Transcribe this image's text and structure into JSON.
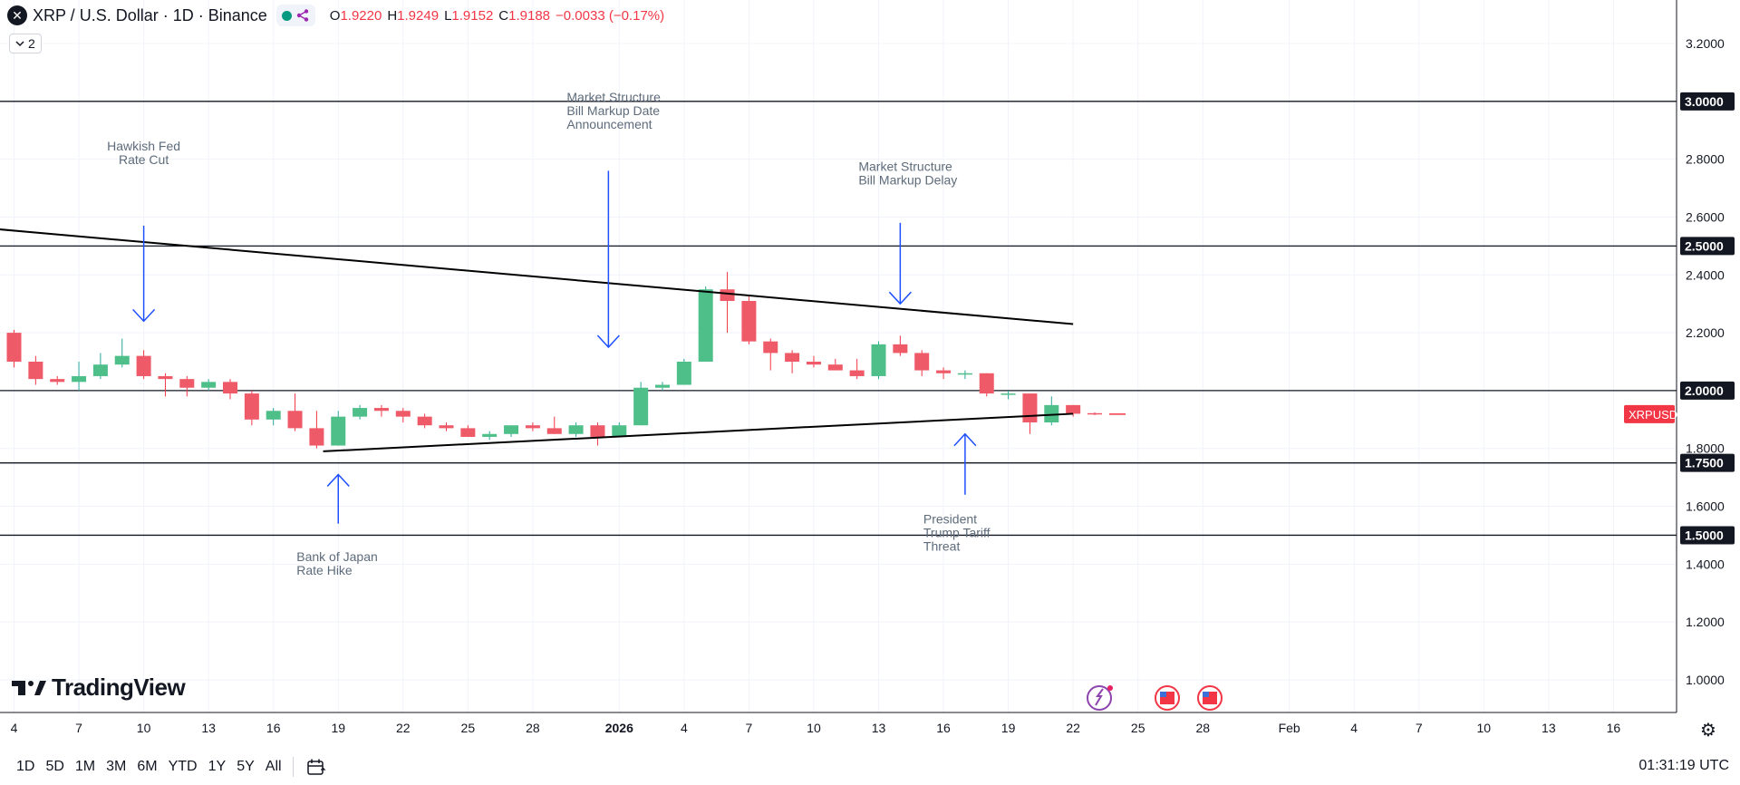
{
  "header": {
    "symbol_title": "XRP / U.S. Dollar · 1D · Binance",
    "indicator_count": "2",
    "ohlc": {
      "open_label": "O",
      "open": "1.9220",
      "high_label": "H",
      "high": "1.9249",
      "low_label": "L",
      "low": "1.9152",
      "close_label": "C",
      "close": "1.9188",
      "change": "−0.0033 (−0.17%)"
    }
  },
  "colors": {
    "up": "#26a69a",
    "up_fill": "#4fbf8a",
    "down": "#F23645",
    "down_fill": "#ef5a68",
    "trendline": "#000000",
    "annotation": "#1e50ff",
    "grid": "#f0f3fa"
  },
  "chart_data": {
    "type": "candlestick",
    "symbol": "XRPUSD",
    "interval": "1D",
    "ylim": [
      0.92,
      3.3
    ],
    "y_ticks": [
      "3.2000",
      "2.8000",
      "2.6000",
      "2.4000",
      "2.2000",
      "1.8000",
      "1.6000",
      "1.4000",
      "1.2000",
      "1.0000"
    ],
    "x_ticks": [
      {
        "i": 0,
        "label": "4"
      },
      {
        "i": 3,
        "label": "7"
      },
      {
        "i": 6,
        "label": "10"
      },
      {
        "i": 9,
        "label": "13"
      },
      {
        "i": 12,
        "label": "16"
      },
      {
        "i": 15,
        "label": "19"
      },
      {
        "i": 18,
        "label": "22"
      },
      {
        "i": 21,
        "label": "25"
      },
      {
        "i": 24,
        "label": "28"
      },
      {
        "i": 28,
        "label": "2026",
        "bold": true
      },
      {
        "i": 31,
        "label": "4"
      },
      {
        "i": 34,
        "label": "7"
      },
      {
        "i": 37,
        "label": "10"
      },
      {
        "i": 40,
        "label": "13"
      },
      {
        "i": 43,
        "label": "16"
      },
      {
        "i": 46,
        "label": "19"
      },
      {
        "i": 49,
        "label": "22"
      },
      {
        "i": 52,
        "label": "25"
      },
      {
        "i": 55,
        "label": "28"
      },
      {
        "i": 59,
        "label": "Feb"
      },
      {
        "i": 62,
        "label": "4"
      },
      {
        "i": 65,
        "label": "7"
      },
      {
        "i": 68,
        "label": "10"
      },
      {
        "i": 71,
        "label": "13"
      },
      {
        "i": 74,
        "label": "16"
      }
    ],
    "candles": [
      {
        "o": 2.2,
        "h": 2.21,
        "l": 2.08,
        "c": 2.1
      },
      {
        "o": 2.1,
        "h": 2.12,
        "l": 2.02,
        "c": 2.04
      },
      {
        "o": 2.04,
        "h": 2.05,
        "l": 2.02,
        "c": 2.03
      },
      {
        "o": 2.03,
        "h": 2.1,
        "l": 2.0,
        "c": 2.05
      },
      {
        "o": 2.05,
        "h": 2.13,
        "l": 2.04,
        "c": 2.09
      },
      {
        "o": 2.09,
        "h": 2.18,
        "l": 2.08,
        "c": 2.12
      },
      {
        "o": 2.12,
        "h": 2.14,
        "l": 2.04,
        "c": 2.05
      },
      {
        "o": 2.05,
        "h": 2.06,
        "l": 1.98,
        "c": 2.04
      },
      {
        "o": 2.04,
        "h": 2.05,
        "l": 1.98,
        "c": 2.01
      },
      {
        "o": 2.01,
        "h": 2.04,
        "l": 2.0,
        "c": 2.03
      },
      {
        "o": 2.03,
        "h": 2.04,
        "l": 1.97,
        "c": 1.99
      },
      {
        "o": 1.99,
        "h": 2.0,
        "l": 1.88,
        "c": 1.9
      },
      {
        "o": 1.9,
        "h": 1.94,
        "l": 1.88,
        "c": 1.93
      },
      {
        "o": 1.93,
        "h": 1.99,
        "l": 1.86,
        "c": 1.87
      },
      {
        "o": 1.87,
        "h": 1.93,
        "l": 1.8,
        "c": 1.81
      },
      {
        "o": 1.81,
        "h": 1.93,
        "l": 1.81,
        "c": 1.91
      },
      {
        "o": 1.91,
        "h": 1.95,
        "l": 1.9,
        "c": 1.94
      },
      {
        "o": 1.94,
        "h": 1.95,
        "l": 1.91,
        "c": 1.93
      },
      {
        "o": 1.93,
        "h": 1.94,
        "l": 1.89,
        "c": 1.91
      },
      {
        "o": 1.91,
        "h": 1.92,
        "l": 1.87,
        "c": 1.88
      },
      {
        "o": 1.88,
        "h": 1.89,
        "l": 1.86,
        "c": 1.87
      },
      {
        "o": 1.87,
        "h": 1.88,
        "l": 1.84,
        "c": 1.84
      },
      {
        "o": 1.84,
        "h": 1.86,
        "l": 1.83,
        "c": 1.85
      },
      {
        "o": 1.85,
        "h": 1.88,
        "l": 1.84,
        "c": 1.88
      },
      {
        "o": 1.88,
        "h": 1.89,
        "l": 1.86,
        "c": 1.87
      },
      {
        "o": 1.87,
        "h": 1.91,
        "l": 1.85,
        "c": 1.85
      },
      {
        "o": 1.85,
        "h": 1.89,
        "l": 1.84,
        "c": 1.88
      },
      {
        "o": 1.88,
        "h": 1.89,
        "l": 1.81,
        "c": 1.84
      },
      {
        "o": 1.84,
        "h": 1.89,
        "l": 1.84,
        "c": 1.88
      },
      {
        "o": 1.88,
        "h": 2.03,
        "l": 1.88,
        "c": 2.01
      },
      {
        "o": 2.01,
        "h": 2.03,
        "l": 2.0,
        "c": 2.02
      },
      {
        "o": 2.02,
        "h": 2.11,
        "l": 2.02,
        "c": 2.1
      },
      {
        "o": 2.1,
        "h": 2.36,
        "l": 2.1,
        "c": 2.35
      },
      {
        "o": 2.35,
        "h": 2.41,
        "l": 2.2,
        "c": 2.31
      },
      {
        "o": 2.31,
        "h": 2.33,
        "l": 2.16,
        "c": 2.17
      },
      {
        "o": 2.17,
        "h": 2.18,
        "l": 2.07,
        "c": 2.13
      },
      {
        "o": 2.13,
        "h": 2.14,
        "l": 2.06,
        "c": 2.1
      },
      {
        "o": 2.1,
        "h": 2.12,
        "l": 2.08,
        "c": 2.09
      },
      {
        "o": 2.09,
        "h": 2.11,
        "l": 2.07,
        "c": 2.07
      },
      {
        "o": 2.07,
        "h": 2.11,
        "l": 2.04,
        "c": 2.05
      },
      {
        "o": 2.05,
        "h": 2.17,
        "l": 2.04,
        "c": 2.16
      },
      {
        "o": 2.16,
        "h": 2.19,
        "l": 2.12,
        "c": 2.13
      },
      {
        "o": 2.13,
        "h": 2.14,
        "l": 2.05,
        "c": 2.07
      },
      {
        "o": 2.07,
        "h": 2.08,
        "l": 2.04,
        "c": 2.06
      },
      {
        "o": 2.06,
        "h": 2.07,
        "l": 2.04,
        "c": 2.06
      },
      {
        "o": 2.06,
        "h": 2.06,
        "l": 1.98,
        "c": 1.99
      },
      {
        "o": 1.99,
        "h": 2.0,
        "l": 1.97,
        "c": 1.99
      },
      {
        "o": 1.99,
        "h": 1.99,
        "l": 1.85,
        "c": 1.89
      },
      {
        "o": 1.89,
        "h": 1.98,
        "l": 1.88,
        "c": 1.95
      },
      {
        "o": 1.95,
        "h": 1.95,
        "l": 1.91,
        "c": 1.92
      },
      {
        "o": 1.922,
        "h": 1.9249,
        "l": 1.9152,
        "c": 1.9188
      }
    ],
    "horizontal_levels": [
      "3.0000",
      "2.5000",
      "2.0000",
      "1.7500",
      "1.5000"
    ],
    "trendlines": [
      {
        "from": {
          "i": -5.6,
          "v": 2.59
        },
        "to": {
          "i": 49,
          "v": 2.23
        }
      },
      {
        "from": {
          "i": 14.3,
          "v": 1.79
        },
        "to": {
          "i": 49,
          "v": 1.92
        }
      }
    ],
    "annotations": [
      {
        "lines": [
          "Hawkish Fed",
          "Rate Cut"
        ],
        "i": 6,
        "arrow": "down",
        "from_v": 2.57,
        "to_v": 2.24,
        "text_v": 2.83,
        "align": "center"
      },
      {
        "lines": [
          "Market Structure",
          "Bill Markup Date",
          "Announcement"
        ],
        "i": 27.5,
        "arrow": "down",
        "from_v": 2.76,
        "to_v": 2.15,
        "text_v": 3.0,
        "align": "left"
      },
      {
        "lines": [
          "Market Structure",
          "Bill Markup Delay"
        ],
        "i": 41,
        "arrow": "down",
        "from_v": 2.58,
        "to_v": 2.3,
        "text_v": 2.76,
        "align": "left"
      },
      {
        "lines": [
          "Bank of Japan",
          "Rate Hike"
        ],
        "i": 15,
        "arrow": "up",
        "from_v": 1.54,
        "to_v": 1.71,
        "text_v": 1.41,
        "align": "left"
      },
      {
        "lines": [
          "President",
          "Trump Tariff",
          "Threat"
        ],
        "i": 44,
        "arrow": "up",
        "from_v": 1.64,
        "to_v": 1.85,
        "text_v": 1.54,
        "align": "left"
      }
    ],
    "price_label": "XRPUSD",
    "last_price": 1.9188
  },
  "bottom_bar": {
    "ranges": [
      "1D",
      "5D",
      "1M",
      "3M",
      "6M",
      "YTD",
      "1Y",
      "5Y",
      "All"
    ],
    "clock": "01:31:19 UTC"
  },
  "branding": {
    "logo_text": "TradingView"
  }
}
